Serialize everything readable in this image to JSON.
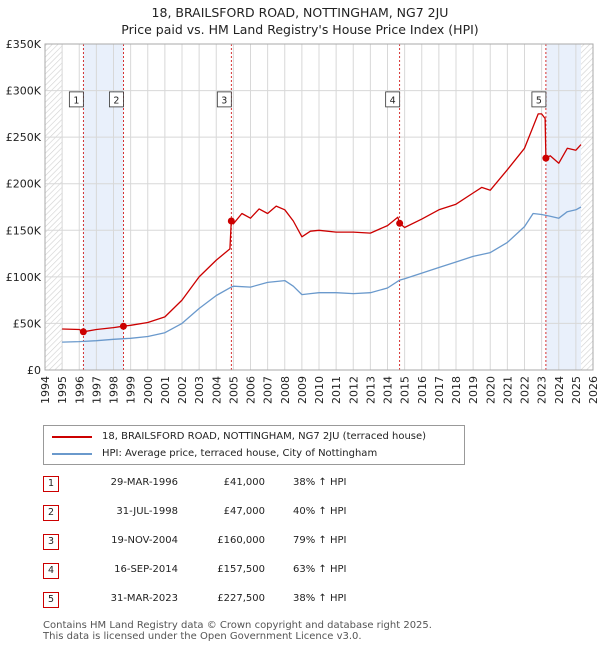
{
  "title_line1": "18, BRAILSFORD ROAD, NOTTINGHAM, NG7 2JU",
  "title_line2": "Price paid vs. HM Land Registry's House Price Index (HPI)",
  "colors": {
    "property": "#cc0000",
    "hpi": "#6a99cc",
    "shade": "#e9f0fb",
    "grid": "#d8d8d8"
  },
  "legend": {
    "property_label": "18, BRAILSFORD ROAD, NOTTINGHAM, NG7 2JU (terraced house)",
    "hpi_label": "HPI: Average price, terraced house, City of Nottingham"
  },
  "sales": [
    {
      "num": "1",
      "date": "29-MAR-1996",
      "price": "£41,000",
      "hpi": "38% ↑ HPI"
    },
    {
      "num": "2",
      "date": "31-JUL-1998",
      "price": "£47,000",
      "hpi": "40% ↑ HPI"
    },
    {
      "num": "3",
      "date": "19-NOV-2004",
      "price": "£160,000",
      "hpi": "79% ↑ HPI"
    },
    {
      "num": "4",
      "date": "16-SEP-2014",
      "price": "£157,500",
      "hpi": "63% ↑ HPI"
    },
    {
      "num": "5",
      "date": "31-MAR-2023",
      "price": "£227,500",
      "hpi": "38% ↑ HPI"
    }
  ],
  "footer_line1": "Contains HM Land Registry data © Crown copyright and database right 2025.",
  "footer_line2": "This data is licensed under the Open Government Licence v3.0.",
  "chart_data": {
    "type": "line",
    "xlim": [
      1994,
      2026
    ],
    "ylim": [
      0,
      350000
    ],
    "x_ticks": [
      1994,
      1995,
      1996,
      1997,
      1998,
      1999,
      2000,
      2001,
      2002,
      2003,
      2004,
      2005,
      2006,
      2007,
      2008,
      2009,
      2010,
      2011,
      2012,
      2013,
      2014,
      2015,
      2016,
      2017,
      2018,
      2019,
      2020,
      2021,
      2022,
      2023,
      2024,
      2025,
      2026
    ],
    "y_ticks": [
      {
        "value": 0,
        "label": "£0"
      },
      {
        "value": 50000,
        "label": "£50K"
      },
      {
        "value": 100000,
        "label": "£100K"
      },
      {
        "value": 150000,
        "label": "£150K"
      },
      {
        "value": 200000,
        "label": "£200K"
      },
      {
        "value": 250000,
        "label": "£250K"
      },
      {
        "value": 300000,
        "label": "£300K"
      },
      {
        "value": 350000,
        "label": "£350K"
      }
    ],
    "shaded_ranges": [
      [
        1996.24,
        1998.58
      ],
      [
        2023.25,
        2025.3
      ]
    ],
    "hatched_ranges": [
      [
        1994,
        1995
      ],
      [
        2025.3,
        2026
      ]
    ],
    "sale_markers": [
      {
        "label": "1",
        "x": 1996.24,
        "y": 41000
      },
      {
        "label": "2",
        "x": 1998.58,
        "y": 47000
      },
      {
        "label": "3",
        "x": 2004.88,
        "y": 160000
      },
      {
        "label": "4",
        "x": 2014.71,
        "y": 157500
      },
      {
        "label": "5",
        "x": 2023.25,
        "y": 227500
      }
    ],
    "series": [
      {
        "name": "18, BRAILSFORD ROAD, NOTTINGHAM, NG7 2JU (terraced house)",
        "x": [
          1995,
          1996,
          1996.24,
          1997,
          1998,
          1998.58,
          1999,
          2000,
          2001,
          2002,
          2003,
          2004,
          2004.8,
          2004.88,
          2005,
          2005.5,
          2006,
          2006.5,
          2007,
          2007.5,
          2008,
          2008.5,
          2009,
          2009.5,
          2010,
          2011,
          2012,
          2013,
          2014,
          2014.6,
          2014.71,
          2015,
          2016,
          2017,
          2018,
          2019,
          2019.5,
          2020,
          2021,
          2022,
          2022.8,
          2023,
          2023.2,
          2023.25,
          2023.5,
          2024,
          2024.5,
          2025,
          2025.3
        ],
        "y": [
          44000,
          43500,
          41000,
          43500,
          45500,
          47000,
          48000,
          51000,
          57000,
          75000,
          100000,
          118000,
          130000,
          160000,
          157000,
          168000,
          163000,
          173000,
          168000,
          176000,
          172000,
          160000,
          143000,
          149000,
          150000,
          148000,
          148000,
          147000,
          155000,
          164000,
          157500,
          153000,
          162000,
          172000,
          178000,
          190000,
          196000,
          193000,
          215000,
          238000,
          275000,
          275000,
          270000,
          227500,
          230000,
          222000,
          238000,
          236000,
          242000
        ]
      },
      {
        "name": "HPI: Average price, terraced house, City of Nottingham",
        "x": [
          1995,
          1996,
          1997,
          1998,
          1999,
          2000,
          2001,
          2002,
          2003,
          2004,
          2004.88,
          2005,
          2006,
          2007,
          2008,
          2008.5,
          2009,
          2009.5,
          2010,
          2011,
          2012,
          2013,
          2014,
          2014.71,
          2015,
          2016,
          2017,
          2018,
          2019,
          2020,
          2021,
          2022,
          2022.5,
          2023,
          2023.5,
          2024,
          2024.5,
          2025,
          2025.3
        ],
        "y": [
          30000,
          30500,
          31500,
          33000,
          34000,
          36000,
          40000,
          50000,
          66000,
          80000,
          89000,
          90000,
          89000,
          94000,
          96000,
          90000,
          81000,
          82000,
          83000,
          83000,
          82000,
          83000,
          88000,
          96500,
          98000,
          104000,
          110000,
          116000,
          122000,
          126000,
          137000,
          154000,
          168000,
          167000,
          165000,
          163000,
          170000,
          172000,
          175000
        ]
      }
    ]
  }
}
